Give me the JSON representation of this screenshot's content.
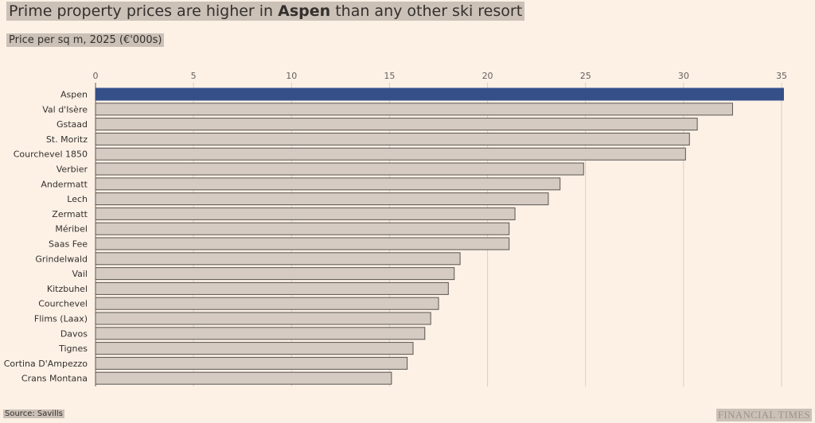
{
  "header": {
    "title_pre": "Prime property prices are higher in ",
    "title_bold": "Aspen",
    "title_post": " than any other ski resort",
    "subtitle": "Price per sq m, 2025 (€'000s)"
  },
  "footer": {
    "source": "Source: Savills",
    "logo": "FINANCIAL TIMES"
  },
  "colors": {
    "highlight": "#355089",
    "bar": "#d5cbc2",
    "bar_stroke": "#5a5552",
    "grid": "#d9cfc6"
  },
  "chart_data": {
    "type": "bar",
    "orientation": "horizontal",
    "title": "Prime property prices are higher in Aspen than any other ski resort",
    "xlabel": "Price per sq m, 2025 (€'000s)",
    "ylabel": "",
    "xlim": [
      0,
      35
    ],
    "xticks": [
      0,
      5,
      10,
      15,
      20,
      25,
      30,
      35
    ],
    "grid": true,
    "highlight": "Aspen",
    "categories": [
      "Aspen",
      "Val d'Isère",
      "Gstaad",
      "St. Moritz",
      "Courchevel 1850",
      "Verbier",
      "Andermatt",
      "Lech",
      "Zermatt",
      "Méribel",
      "Saas Fee",
      "Grindelwald",
      "Vail",
      "Kitzbuhel",
      "Courchevel",
      "Flims (Laax)",
      "Davos",
      "Tignes",
      "Cortina D'Ampezzo",
      "Crans Montana"
    ],
    "values": [
      35.1,
      32.5,
      30.7,
      30.3,
      30.1,
      24.9,
      23.7,
      23.1,
      21.4,
      21.1,
      21.1,
      18.6,
      18.3,
      18.0,
      17.5,
      17.1,
      16.8,
      16.2,
      15.9,
      15.1
    ]
  }
}
